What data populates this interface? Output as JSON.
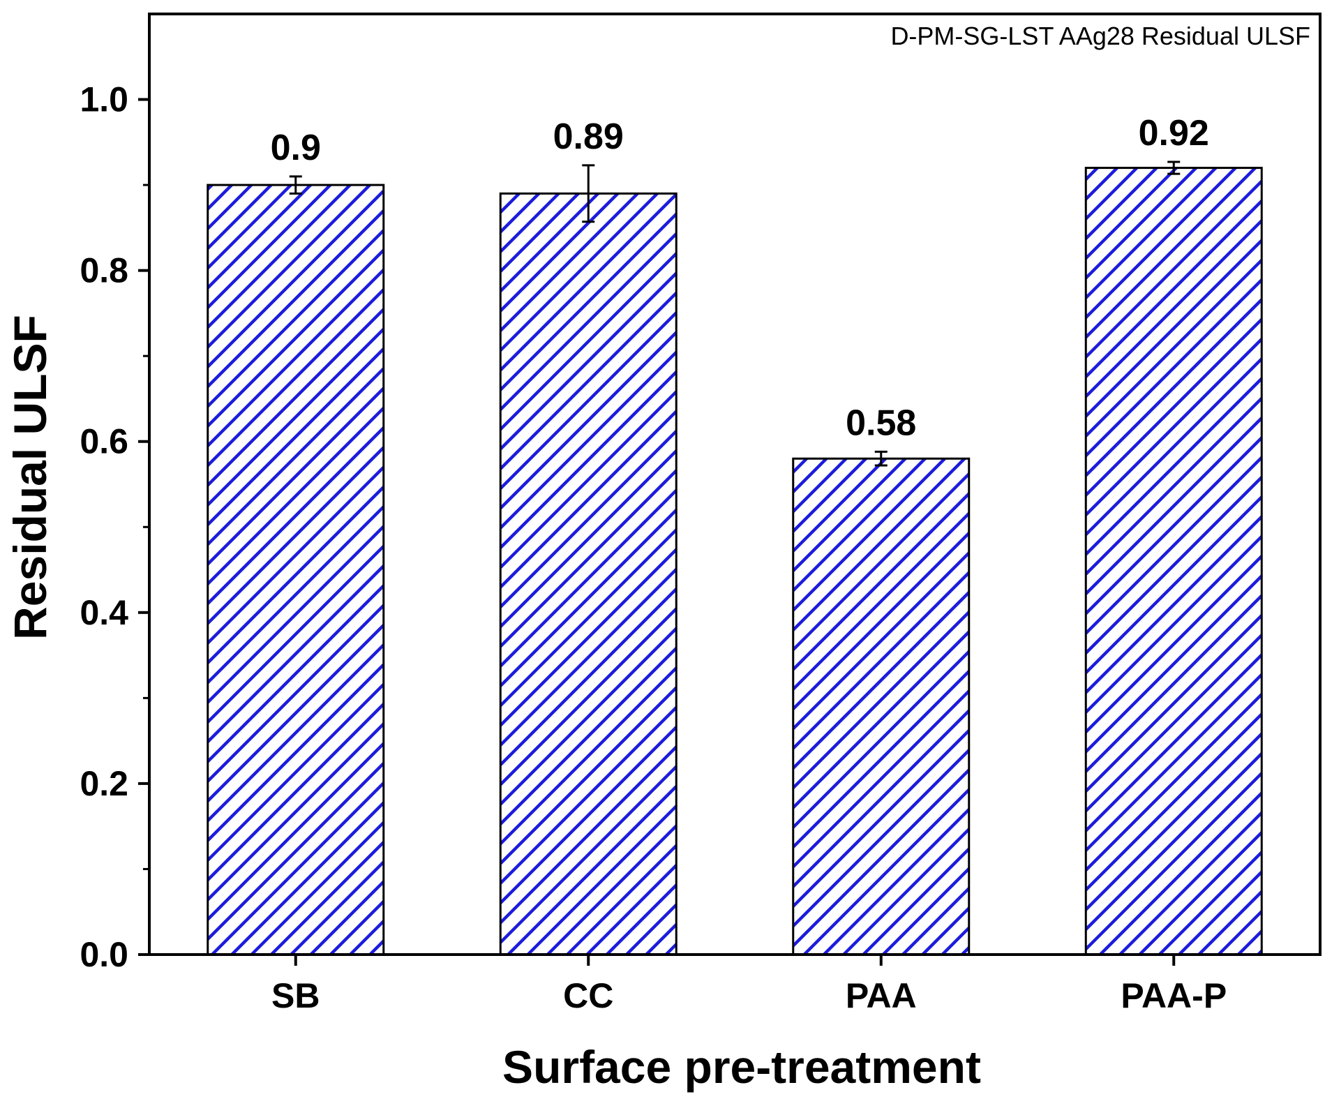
{
  "chart_data": {
    "type": "bar",
    "title": "",
    "annotation": "D-PM-SG-LST AAg28 Residual ULSF",
    "xlabel": "Surface pre-treatment",
    "ylabel": "Residual ULSF",
    "ylim": [
      0,
      1.1
    ],
    "yticks": [
      0.0,
      0.2,
      0.4,
      0.6,
      0.8,
      1.0
    ],
    "ytick_labels": [
      "0.0",
      "0.2",
      "0.4",
      "0.6",
      "0.8",
      "1.0"
    ],
    "minor_ytick_step": 0.1,
    "grid": false,
    "categories": [
      "SB",
      "CC",
      "PAA",
      "PAA-P"
    ],
    "values": [
      0.9,
      0.89,
      0.58,
      0.92
    ],
    "data_labels": [
      "0.9",
      "0.89",
      "0.58",
      "0.92"
    ],
    "errors": [
      0.01,
      0.033,
      0.008,
      0.007
    ],
    "bar_fill": "hatched",
    "colors": {
      "hatch": "#1c1cdc",
      "bar_bg": "#ffffff",
      "axis": "#000000"
    }
  }
}
